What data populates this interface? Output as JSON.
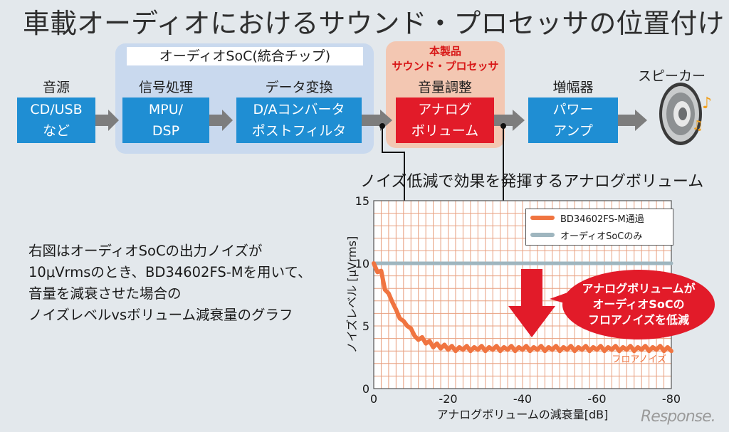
{
  "title": "車載オーディオにおけるサウンド・プロセッサの位置付け",
  "soc_group": {
    "label": "オーディオSoC(統合チップ)"
  },
  "product_group": {
    "line1": "本製品",
    "line2": "サウンド・プロセッサ"
  },
  "stages": [
    {
      "header": "音源",
      "lines": [
        "CD/USB",
        "など"
      ]
    },
    {
      "header": "信号処理",
      "lines": [
        "MPU/",
        "DSP"
      ]
    },
    {
      "header": "データ変換",
      "lines": [
        "D/Aコンバータ",
        "ポストフィルタ"
      ]
    },
    {
      "header": "音量調整",
      "lines": [
        "アナログ",
        "ボリューム"
      ]
    },
    {
      "header": "増幅器",
      "lines": [
        "パワー",
        "アンプ"
      ]
    },
    {
      "header": "スピーカー"
    }
  ],
  "noise_title": "ノイズ低減で効果を発揮するアナログボリューム",
  "description": [
    "右図はオーディオSoCの出力ノイズが",
    "10μVrmsのとき、BD34602FS-Mを用いて、",
    "音量を減衰させた場合の",
    "ノイズレベルvsボリューム減衰量のグラフ"
  ],
  "callout": [
    "アナログボリュームが",
    "オーディオSoCの",
    "フロアノイズを低減"
  ],
  "watermark": "Response.",
  "colors": {
    "blue_box": "#1f8ed3",
    "red_box": "#e21b29",
    "soc_panel": "#c9d9ee",
    "product_panel": "#f3c7b2",
    "series_bd": "#f07440",
    "series_soc": "#9fb6bf"
  },
  "chart_data": {
    "type": "line",
    "xlabel": "アナログボリュームの減衰量[dB]",
    "ylabel": "ノイズレベル [μVrms]",
    "xlim": [
      0,
      -80
    ],
    "ylim": [
      0,
      15
    ],
    "xticks": [
      0,
      -20,
      -40,
      -60,
      -80
    ],
    "yticks": [
      0,
      5,
      10,
      15
    ],
    "grid": true,
    "legend_position": "top-right",
    "annotation": "フロアノイズ",
    "series": [
      {
        "name": "BD34602FS-M通過",
        "color": "#f07440",
        "x": [
          0,
          -1,
          -2,
          -3,
          -4,
          -5,
          -6,
          -7,
          -8,
          -9,
          -10,
          -11,
          -12,
          -13,
          -14,
          -15,
          -16,
          -17,
          -18,
          -19,
          -20,
          -21,
          -22,
          -23,
          -24,
          -25,
          -26,
          -27,
          -28,
          -29,
          -30,
          -31,
          -32,
          -33,
          -34,
          -35,
          -36,
          -37,
          -38,
          -39,
          -40,
          -41,
          -42,
          -43,
          -44,
          -45,
          -46,
          -47,
          -48,
          -49,
          -50,
          -51,
          -52,
          -53,
          -54,
          -55,
          -56,
          -57,
          -58,
          -59,
          -60,
          -61,
          -62,
          -63,
          -64,
          -65,
          -66,
          -67,
          -68,
          -69,
          -70,
          -71,
          -72,
          -73,
          -74,
          -75,
          -76,
          -77,
          -78,
          -79,
          -80
        ],
        "y": [
          10,
          9.3,
          9.4,
          7.9,
          7.6,
          6.9,
          6.3,
          5.6,
          5.4,
          5.0,
          4.8,
          4.2,
          3.9,
          4.1,
          3.6,
          3.8,
          3.3,
          3.6,
          3.2,
          3.5,
          3.1,
          3.4,
          3.0,
          3.3,
          3.1,
          3.4,
          3.0,
          3.3,
          3.1,
          3.4,
          3.0,
          3.3,
          3.1,
          3.4,
          3.0,
          3.3,
          3.1,
          3.4,
          3.0,
          3.3,
          3.1,
          3.4,
          3.0,
          3.3,
          3.1,
          3.4,
          3.0,
          3.3,
          3.1,
          3.4,
          3.0,
          3.3,
          3.1,
          3.4,
          3.0,
          3.3,
          3.1,
          3.4,
          3.0,
          3.3,
          3.1,
          3.4,
          3.0,
          3.3,
          3.1,
          3.4,
          3.0,
          3.3,
          3.1,
          3.4,
          3.0,
          3.3,
          3.1,
          3.4,
          3.0,
          3.3,
          3.1,
          3.4,
          3.0,
          3.3,
          3.0
        ]
      },
      {
        "name": "オーディオSoCのみ",
        "color": "#9fb6bf",
        "x": [
          0,
          -80
        ],
        "y": [
          10,
          10
        ]
      }
    ]
  }
}
